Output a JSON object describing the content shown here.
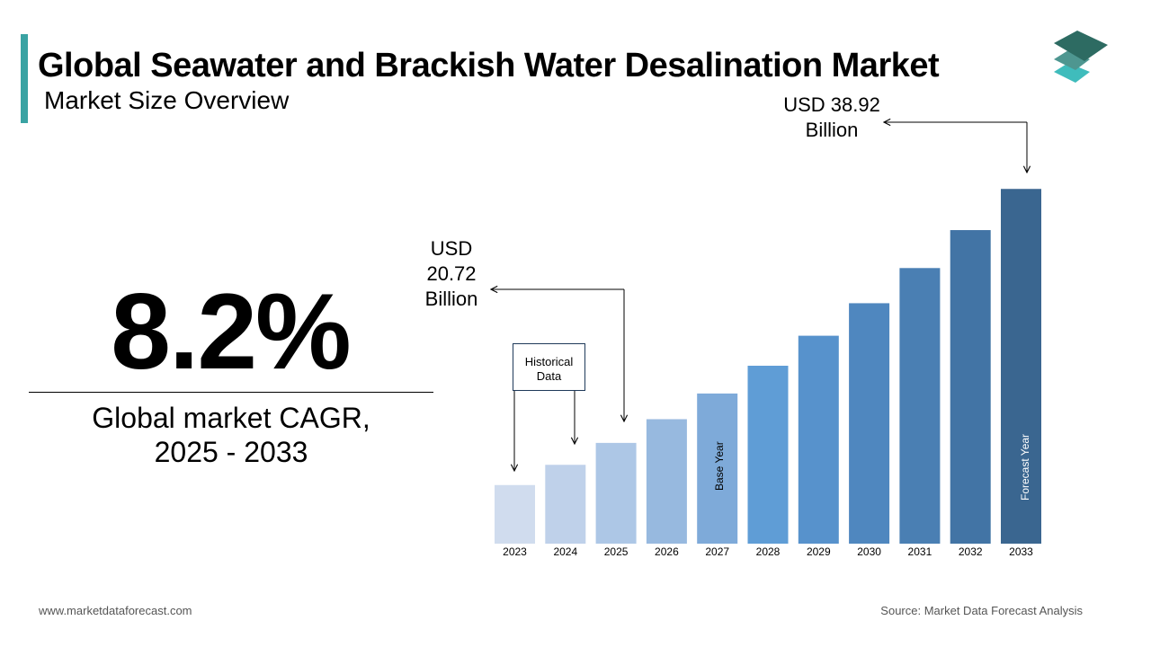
{
  "header": {
    "title": "Global Seawater and Brackish Water Desalination Market",
    "subtitle": "Market Size Overview"
  },
  "kpi": {
    "value": "8.2%",
    "label_line1": "Global market CAGR,",
    "label_line2": "2025 - 2033"
  },
  "annotations": {
    "start_line1": "USD",
    "start_line2": "20.72",
    "start_line3": "Billion",
    "end_line1": "USD 38.92",
    "end_line2": "Billion",
    "historical": "Historical Data",
    "base_year": "Base Year",
    "forecast_year": "Forecast Year"
  },
  "footer": {
    "website": "www.marketdataforecast.com",
    "source": "Source: Market Data Forecast Analysis"
  },
  "colors": {
    "accent": "#3aa3a3",
    "logo": [
      "#2d6b62",
      "#4e9690",
      "#3fbcbc"
    ]
  },
  "chart_data": {
    "type": "bar",
    "title": "Global Seawater and Brackish Water Desalination Market",
    "categories": [
      "2023",
      "2024",
      "2025",
      "2026",
      "2027",
      "2028",
      "2029",
      "2030",
      "2031",
      "2032",
      "2033"
    ],
    "values": [
      17.7,
      19.15,
      20.72,
      22.42,
      24.26,
      26.25,
      28.4,
      30.73,
      33.25,
      35.97,
      38.92
    ],
    "unit": "USD Billion",
    "colors": [
      "#d0dcee",
      "#bfd1ea",
      "#adc7e6",
      "#97b9df",
      "#7eaad9",
      "#5f9dd6",
      "#5792cc",
      "#4f87bf",
      "#4a7fb3",
      "#4274a5",
      "#3a6690"
    ],
    "ylim": [
      13.5,
      39
    ],
    "xlabel": "",
    "ylabel": ""
  }
}
